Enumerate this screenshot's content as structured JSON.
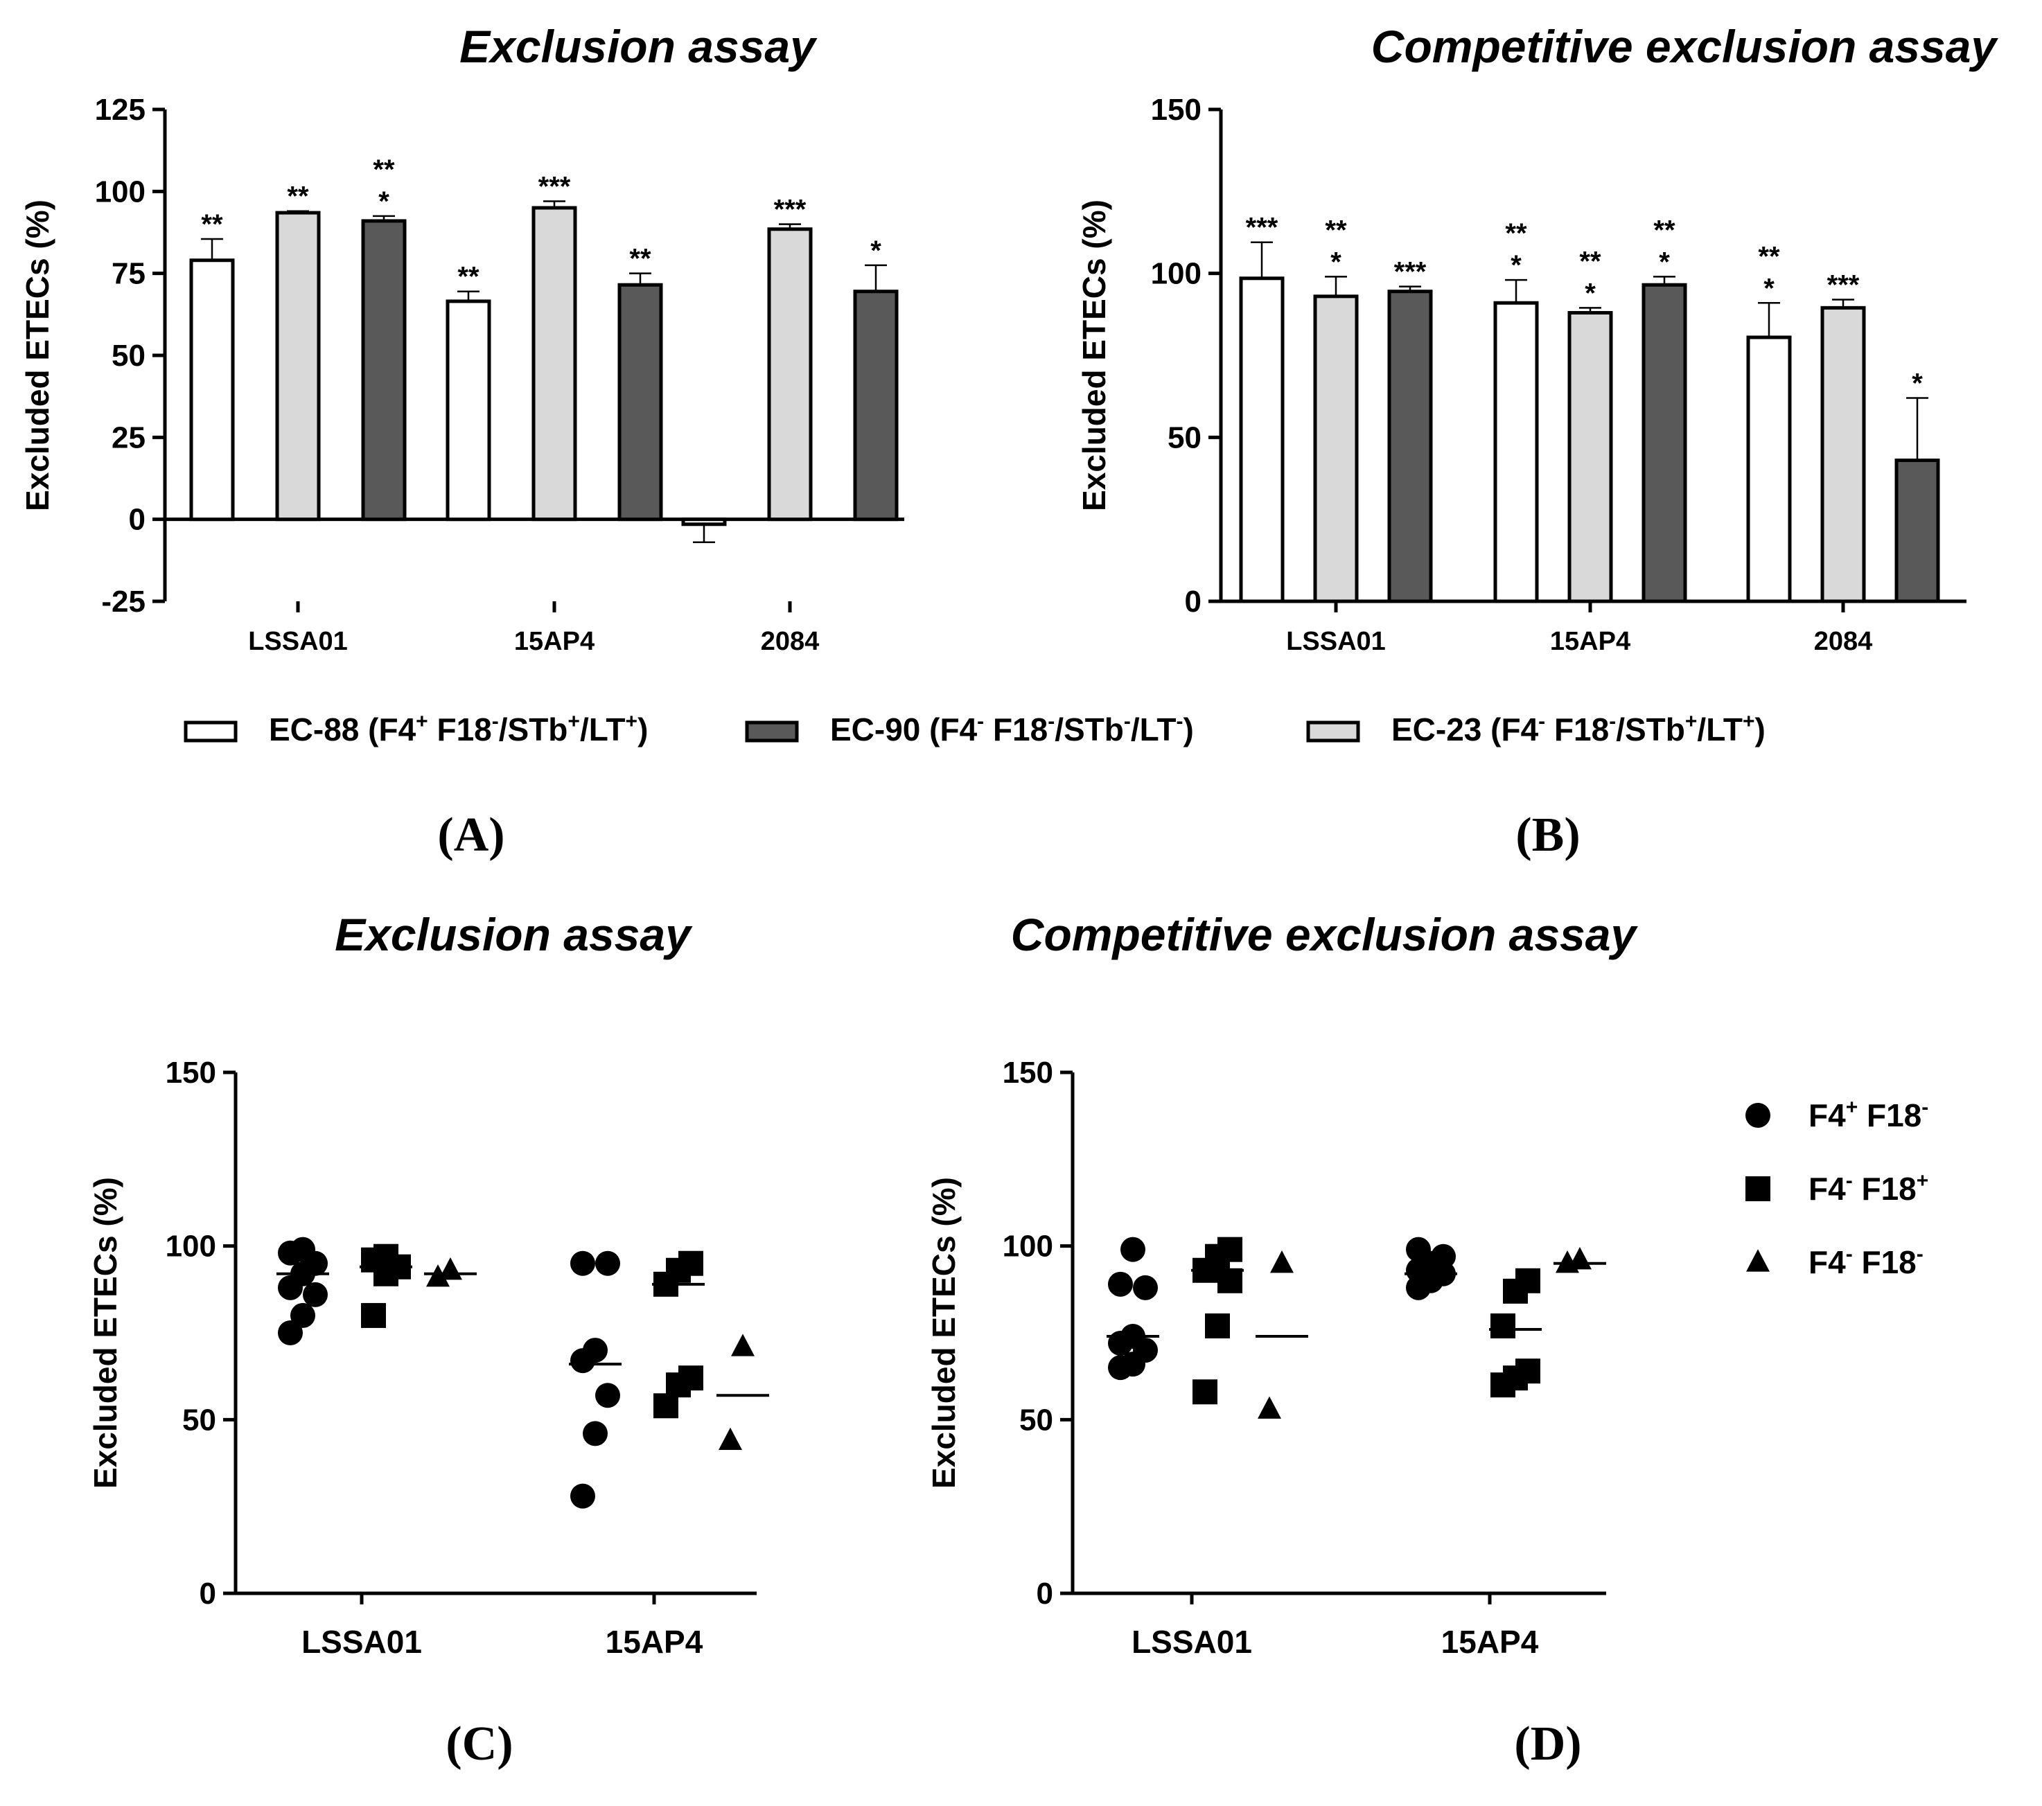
{
  "chart_data": [
    {
      "id": "A",
      "type": "bar",
      "title": "Exclusion assay",
      "ylabel": "Excluded ETECs (%)",
      "ylim": [
        -25,
        125
      ],
      "yticks": [
        -25,
        0,
        25,
        50,
        75,
        100,
        125
      ],
      "ytick_labels": [
        "-25",
        "0",
        "25",
        "50",
        "75",
        "100",
        "125"
      ],
      "categories": [
        "LSSA01",
        "15AP4",
        "2084"
      ],
      "series": [
        {
          "name": "EC-88",
          "fill": "#ffffff",
          "values": [
            79,
            66.5,
            -1.5
          ],
          "errors": [
            6.5,
            3,
            5.5
          ],
          "sig": [
            [
              "**"
            ],
            [
              "**"
            ],
            []
          ]
        },
        {
          "name": "EC-23",
          "fill": "#d9d9d9",
          "values": [
            93.5,
            95,
            88.5
          ],
          "errors": [
            0.5,
            2,
            1.5
          ],
          "sig": [
            [
              "**"
            ],
            [
              "***"
            ],
            [
              "***"
            ]
          ]
        },
        {
          "name": "EC-90",
          "fill": "#595959",
          "values": [
            91,
            71.5,
            69.5
          ],
          "errors": [
            1.5,
            3.5,
            8
          ],
          "sig": [
            [
              "**",
              "*"
            ],
            [
              "**"
            ],
            [
              "*"
            ]
          ]
        }
      ]
    },
    {
      "id": "B",
      "type": "bar",
      "title": "Competitive exclusion assay",
      "ylabel": "Excluded ETECs (%)",
      "ylim": [
        0,
        150
      ],
      "yticks": [
        0,
        50,
        100,
        150
      ],
      "ytick_labels": [
        "0",
        "50",
        "100",
        "150"
      ],
      "categories": [
        "LSSA01",
        "15AP4",
        "2084"
      ],
      "series": [
        {
          "name": "EC-88",
          "fill": "#ffffff",
          "values": [
            98.5,
            91,
            80.5
          ],
          "errors": [
            11,
            7,
            10.5
          ],
          "sig": [
            [
              "***"
            ],
            [
              "**",
              "*"
            ],
            [
              "**",
              "*"
            ]
          ]
        },
        {
          "name": "EC-23",
          "fill": "#d9d9d9",
          "values": [
            93,
            88,
            89.5
          ],
          "errors": [
            6,
            1.5,
            2.5
          ],
          "sig": [
            [
              "**",
              "*"
            ],
            [
              "**",
              "*"
            ],
            [
              "***"
            ]
          ]
        },
        {
          "name": "EC-90",
          "fill": "#595959",
          "values": [
            94.5,
            96.5,
            43
          ],
          "errors": [
            1.5,
            2.5,
            19
          ],
          "sig": [
            [
              "***"
            ],
            [
              "**",
              "*"
            ],
            [
              "*"
            ]
          ]
        }
      ]
    },
    {
      "id": "C",
      "type": "scatter",
      "title": "Exclusion assay",
      "ylabel": "Excluded ETECs (%)",
      "ylim": [
        0,
        150
      ],
      "yticks": [
        0,
        50,
        100,
        150
      ],
      "ytick_labels": [
        "0",
        "50",
        "100",
        "150"
      ],
      "categories": [
        "LSSA01",
        "15AP4"
      ],
      "groups": [
        {
          "category": "LSSA01",
          "marker": "circle",
          "values": [
            75,
            80,
            86,
            88,
            92,
            95,
            98,
            99
          ],
          "mean": 92
        },
        {
          "category": "LSSA01",
          "marker": "square",
          "values": [
            80,
            92,
            94,
            96,
            97
          ],
          "mean": 94
        },
        {
          "category": "LSSA01",
          "marker": "triangle",
          "values": [
            91,
            93
          ],
          "mean": 92
        },
        {
          "category": "15AP4",
          "marker": "circle",
          "values": [
            28,
            46,
            57,
            67,
            70,
            95,
            95
          ],
          "mean": 66
        },
        {
          "category": "15AP4",
          "marker": "square",
          "values": [
            54,
            60,
            62,
            89,
            93,
            95
          ],
          "mean": 89
        },
        {
          "category": "15AP4",
          "marker": "triangle",
          "values": [
            44,
            71
          ],
          "mean": 57
        }
      ]
    },
    {
      "id": "D",
      "type": "scatter",
      "title": "Competitive exclusion assay",
      "ylabel": "Excluded ETECs (%)",
      "ylim": [
        0,
        150
      ],
      "yticks": [
        0,
        50,
        100,
        150
      ],
      "ytick_labels": [
        "0",
        "50",
        "100",
        "150"
      ],
      "categories": [
        "LSSA01",
        "15AP4"
      ],
      "groups": [
        {
          "category": "LSSA01",
          "marker": "circle",
          "values": [
            65,
            66,
            70,
            72,
            74,
            88,
            89,
            99
          ],
          "mean": 74
        },
        {
          "category": "LSSA01",
          "marker": "square",
          "values": [
            58,
            77,
            90,
            93,
            97,
            99
          ],
          "mean": 93
        },
        {
          "category": "LSSA01",
          "marker": "triangle",
          "values": [
            53,
            95
          ],
          "mean": 74
        },
        {
          "category": "15AP4",
          "marker": "circle",
          "values": [
            88,
            90,
            92,
            93,
            95,
            97,
            99
          ],
          "mean": 92
        },
        {
          "category": "15AP4",
          "marker": "square",
          "values": [
            60,
            62,
            64,
            77,
            87,
            90
          ],
          "mean": 76
        },
        {
          "category": "15AP4",
          "marker": "triangle",
          "values": [
            95,
            96
          ],
          "mean": 95
        }
      ]
    }
  ],
  "legend_bar": [
    {
      "base": "EC-88 (F4",
      "s1": "+",
      "mid": " F18",
      "s2": "-",
      "rest": "/STb",
      "s3": "+",
      "rest2": "/LT",
      "s4": "+",
      "end": ")",
      "fill": "#ffffff"
    },
    {
      "base": "EC-90 (F4",
      "s1": "-",
      "mid": " F18",
      "s2": "-",
      "rest": "/STb",
      "s3": "-",
      "rest2": "/LT",
      "s4": "-",
      "end": ")",
      "fill": "#595959"
    },
    {
      "base": "EC-23 (F4",
      "s1": "-",
      "mid": " F18",
      "s2": "-",
      "rest": "/STb",
      "s3": "+",
      "rest2": "/LT",
      "s4": "+",
      "end": ")",
      "fill": "#d9d9d9"
    }
  ],
  "legend_scatter": [
    {
      "marker": "circle",
      "a": "F4",
      "sa": "+",
      "b": " F18",
      "sb": "-"
    },
    {
      "marker": "square",
      "a": "F4",
      "sa": "-",
      "b": " F18",
      "sb": "+"
    },
    {
      "marker": "triangle",
      "a": "F4",
      "sa": "-",
      "b": " F18",
      "sb": "-"
    }
  ],
  "panel_labels": [
    "(A)",
    "(B)",
    "(C)",
    "(D)"
  ]
}
